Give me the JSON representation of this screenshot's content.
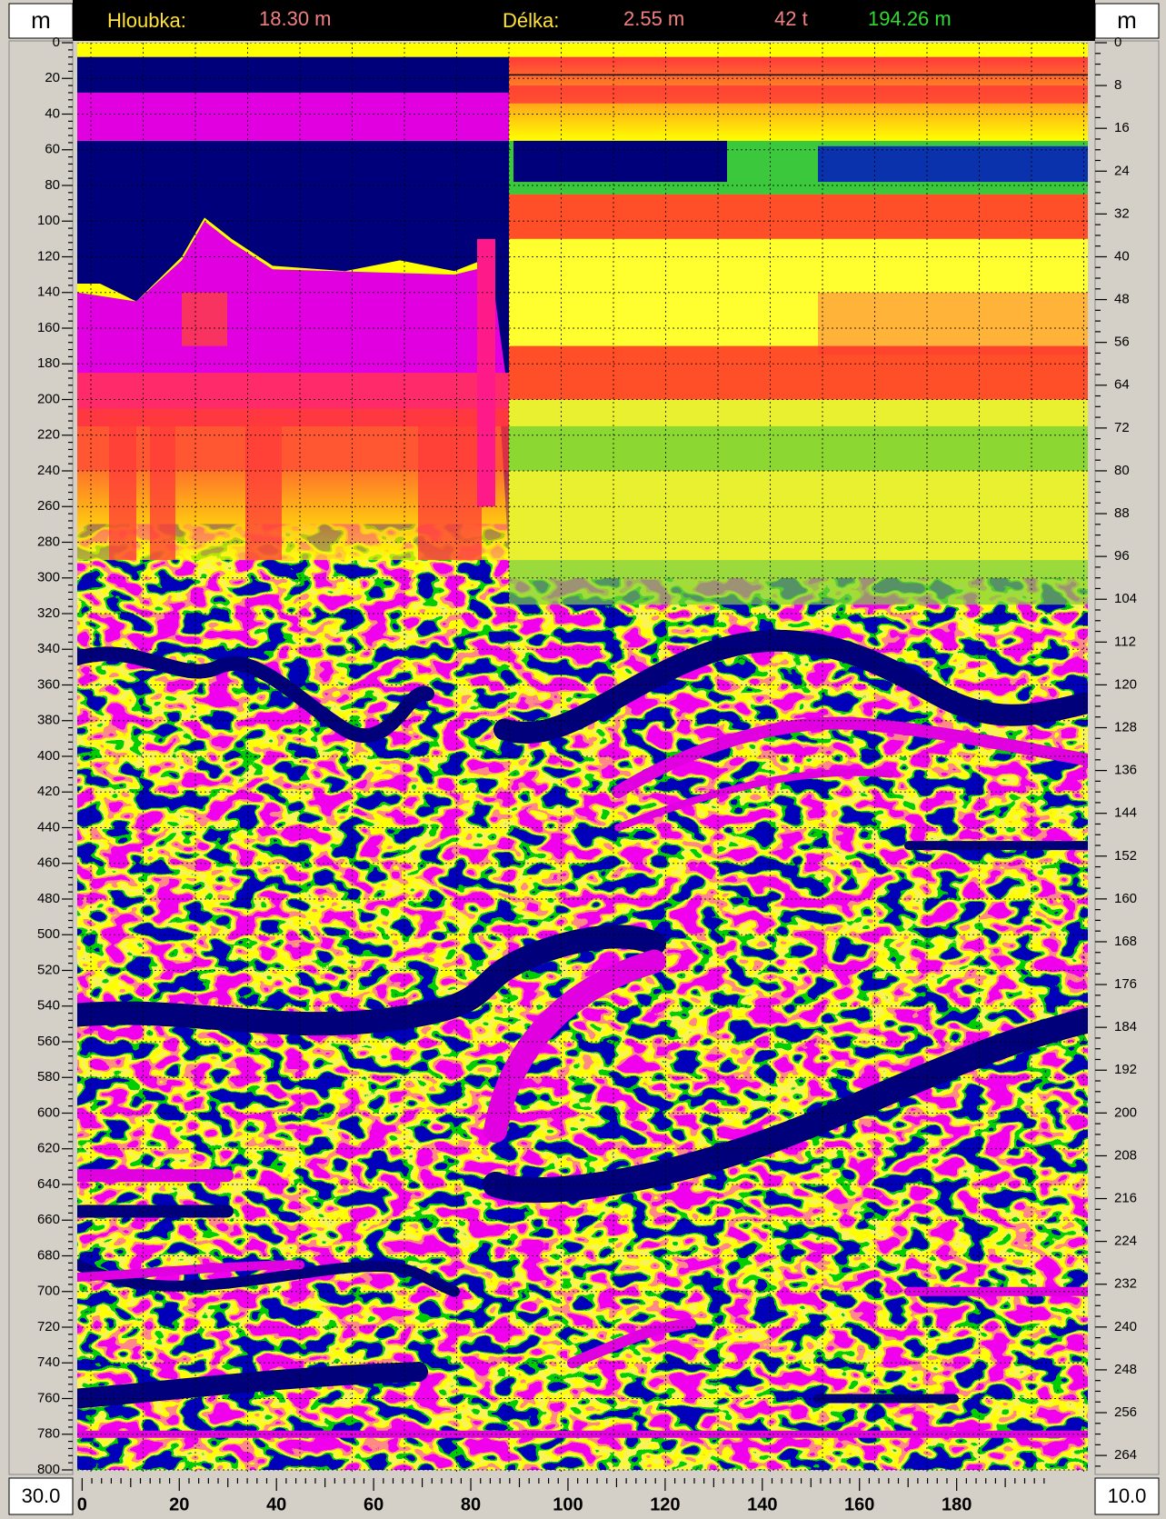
{
  "header": {
    "depth_label": "Hloubka:",
    "depth_value": "18.30 m",
    "length_label": "Délka:",
    "length_value": "2.55 m",
    "traces": "42 t",
    "total_length": "194.26 m"
  },
  "left_unit": "m",
  "right_unit": "m",
  "left_axis": {
    "lim": [
      0,
      800
    ],
    "ticks": [
      0,
      20,
      40,
      60,
      80,
      100,
      120,
      140,
      160,
      180,
      200,
      220,
      240,
      260,
      280,
      300,
      320,
      340,
      360,
      380,
      400,
      420,
      440,
      460,
      480,
      500,
      520,
      540,
      560,
      580,
      600,
      620,
      640,
      660,
      680,
      700,
      720,
      740,
      760,
      780,
      800
    ]
  },
  "right_axis": {
    "lim": [
      0,
      266.7
    ],
    "ticks": [
      0,
      8,
      16,
      24,
      32,
      40,
      48,
      56,
      64,
      72,
      80,
      88,
      96,
      104,
      112,
      120,
      128,
      136,
      144,
      152,
      160,
      168,
      176,
      184,
      192,
      200,
      208,
      216,
      224,
      232,
      240,
      248,
      256,
      264
    ]
  },
  "bottom_axis": {
    "lim": [
      -1,
      207
    ],
    "ticks": [
      0,
      20,
      40,
      60,
      80,
      100,
      120,
      140,
      160,
      180
    ]
  },
  "left_corner": "30.0",
  "right_corner": "10.0"
}
